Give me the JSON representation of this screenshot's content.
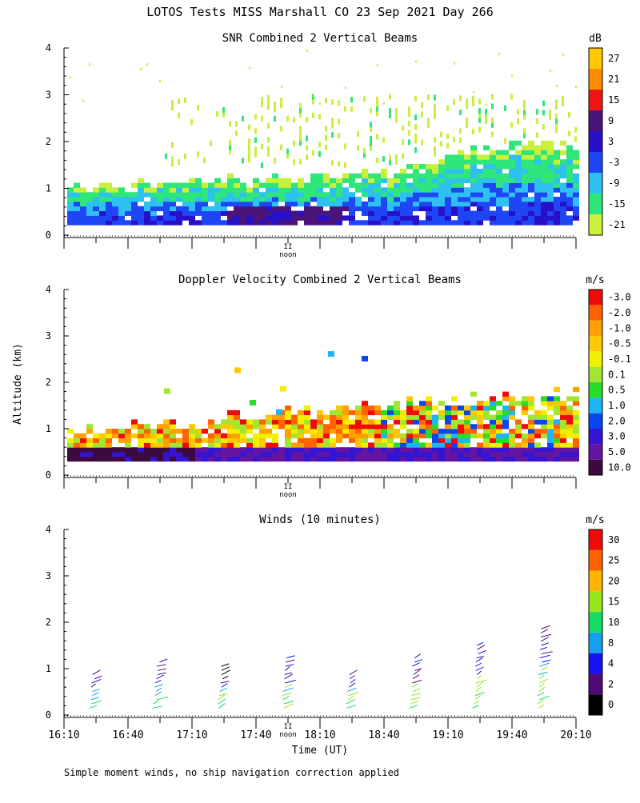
{
  "figure": {
    "title": "LOTOS Tests MISS Marshall CO  23 Sep 2021 Day 266",
    "ylabel": "Altitude (km)",
    "xlabel": "Time (UT)",
    "footnote": "Simple moment winds, no ship navigation correction applied",
    "noon_label": "noon",
    "noon_marker": "II",
    "x_tick_labels": [
      "16:10",
      "16:40",
      "17:10",
      "17:40",
      "18:10",
      "18:40",
      "19:10",
      "19:40",
      "20:10"
    ]
  },
  "chart_data": [
    {
      "type": "heatmap",
      "title": "SNR Combined 2 Vertical Beams",
      "ylabel": "Altitude (km)",
      "y_tick_labels": [
        "0",
        "1",
        "2",
        "3",
        "4"
      ],
      "ylim": [
        0,
        4
      ],
      "xlim": [
        "16:10",
        "20:10"
      ],
      "colorbar": {
        "unit": "dB",
        "labels": [
          "-21",
          "-15",
          "-9",
          "-3",
          "3",
          "9",
          "15",
          "21",
          "27"
        ],
        "colors": [
          "#c8f03c",
          "#2ee67a",
          "#2ec0f0",
          "#1e46f5",
          "#2810c8",
          "#4b1478",
          "#f01414",
          "#ff8c00",
          "#ffc800"
        ]
      },
      "description_key": "snr",
      "upper_layer_top_km": 2.8,
      "boundary_layer_top_km": [
        1.0,
        1.0,
        1.1,
        1.1,
        1.2,
        1.3,
        1.7,
        1.9,
        1.9
      ]
    },
    {
      "type": "heatmap",
      "title": "Doppler Velocity Combined 2 Vertical Beams",
      "ylabel": "Altitude (km)",
      "y_tick_labels": [
        "0",
        "1",
        "2",
        "3",
        "4"
      ],
      "ylim": [
        0,
        4
      ],
      "xlim": [
        "16:10",
        "20:10"
      ],
      "colorbar": {
        "unit": "m/s",
        "labels": [
          "10.0",
          "5.0",
          "3.0",
          "2.0",
          "1.0",
          "0.5",
          "0.1",
          "-0.1",
          "-0.5",
          "-1.0",
          "-2.0",
          "-3.0"
        ],
        "colors": [
          "#3c0a3c",
          "#6414a0",
          "#3214d2",
          "#0a46f0",
          "#1eb4f5",
          "#28dc28",
          "#a0e632",
          "#f0f000",
          "#ffc800",
          "#ffa000",
          "#ff6400",
          "#f00a0a"
        ]
      }
    },
    {
      "type": "scatter",
      "title": "Winds (10 minutes)",
      "ylabel": "Altitude (km)",
      "xlabel": "Time (UT)",
      "y_tick_labels": [
        "0",
        "1",
        "2",
        "3",
        "4"
      ],
      "ylim": [
        0,
        4
      ],
      "xlim": [
        "16:10",
        "20:10"
      ],
      "colorbar": {
        "unit": "m/s",
        "labels": [
          "0",
          "2",
          "4",
          "8",
          "10",
          "15",
          "20",
          "25",
          "30"
        ],
        "colors": [
          "#000000",
          "#500a78",
          "#1414f0",
          "#14a0f0",
          "#14dc64",
          "#96e61e",
          "#ffb400",
          "#ff6400",
          "#f00a0a"
        ]
      },
      "wind_profile_times": [
        "16:25",
        "16:55",
        "17:25",
        "17:55",
        "18:25",
        "18:55",
        "19:25",
        "19:55"
      ],
      "wind_profile_tops_km": [
        0.95,
        1.2,
        1.05,
        1.25,
        0.95,
        1.25,
        1.55,
        1.95
      ]
    }
  ]
}
